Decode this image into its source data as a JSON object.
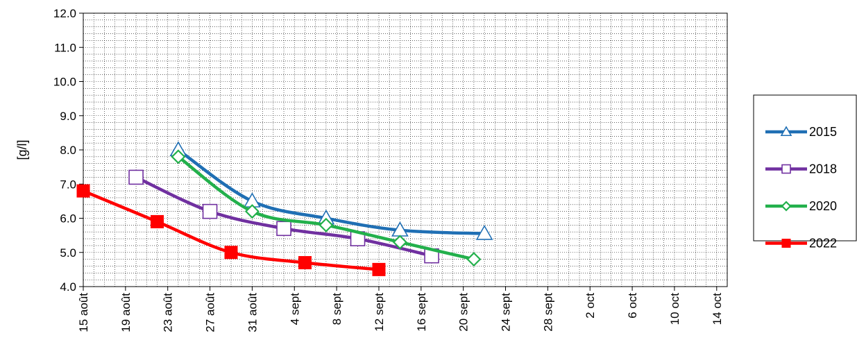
{
  "chart_data": {
    "type": "line",
    "ylabel": "[g/l]",
    "ylim": [
      4.0,
      12.0
    ],
    "yticks": [
      "4.0",
      "5.0",
      "6.0",
      "7.0",
      "8.0",
      "9.0",
      "10.0",
      "11.0",
      "12.0"
    ],
    "xlim": [
      "2022-08-15",
      "2022-10-15"
    ],
    "xticks": [
      {
        "date": "2022-08-15",
        "label": "15 août"
      },
      {
        "date": "2022-08-19",
        "label": "19 août"
      },
      {
        "date": "2022-08-23",
        "label": "23 août"
      },
      {
        "date": "2022-08-27",
        "label": "27 août"
      },
      {
        "date": "2022-08-31",
        "label": "31 août"
      },
      {
        "date": "2022-09-04",
        "label": "4 sept"
      },
      {
        "date": "2022-09-08",
        "label": "8 sept"
      },
      {
        "date": "2022-09-12",
        "label": "12 sept"
      },
      {
        "date": "2022-09-16",
        "label": "16 sept"
      },
      {
        "date": "2022-09-20",
        "label": "20 sept"
      },
      {
        "date": "2022-09-24",
        "label": "24 sept"
      },
      {
        "date": "2022-09-28",
        "label": "28 sept"
      },
      {
        "date": "2022-10-02",
        "label": "2 oct"
      },
      {
        "date": "2022-10-06",
        "label": "6 oct"
      },
      {
        "date": "2022-10-10",
        "label": "10 oct"
      },
      {
        "date": "2022-10-14",
        "label": "14 oct"
      }
    ],
    "grid": true,
    "legend": "right",
    "series": [
      {
        "name": "2015",
        "color": "#1f6fb4",
        "marker": "triangle-open",
        "points": [
          {
            "x": "2022-08-24",
            "y": 8.0
          },
          {
            "x": "2022-08-31",
            "y": 6.5
          },
          {
            "x": "2022-09-07",
            "y": 6.0
          },
          {
            "x": "2022-09-14",
            "y": 5.65
          },
          {
            "x": "2022-09-22",
            "y": 5.55
          }
        ]
      },
      {
        "name": "2018",
        "color": "#7030a0",
        "marker": "square-open",
        "points": [
          {
            "x": "2022-08-20",
            "y": 7.2
          },
          {
            "x": "2022-08-27",
            "y": 6.2
          },
          {
            "x": "2022-09-03",
            "y": 5.7
          },
          {
            "x": "2022-09-10",
            "y": 5.4
          },
          {
            "x": "2022-09-17",
            "y": 4.9
          }
        ]
      },
      {
        "name": "2020",
        "color": "#22b04b",
        "marker": "diamond-open",
        "points": [
          {
            "x": "2022-08-24",
            "y": 7.8
          },
          {
            "x": "2022-08-31",
            "y": 6.2
          },
          {
            "x": "2022-09-07",
            "y": 5.8
          },
          {
            "x": "2022-09-14",
            "y": 5.3
          },
          {
            "x": "2022-09-21",
            "y": 4.8
          }
        ]
      },
      {
        "name": "2022",
        "color": "#ff0000",
        "marker": "square-filled",
        "points": [
          {
            "x": "2022-08-15",
            "y": 6.8
          },
          {
            "x": "2022-08-22",
            "y": 5.9
          },
          {
            "x": "2022-08-29",
            "y": 5.0
          },
          {
            "x": "2022-09-05",
            "y": 4.7
          },
          {
            "x": "2022-09-12",
            "y": 4.5
          }
        ]
      }
    ]
  }
}
